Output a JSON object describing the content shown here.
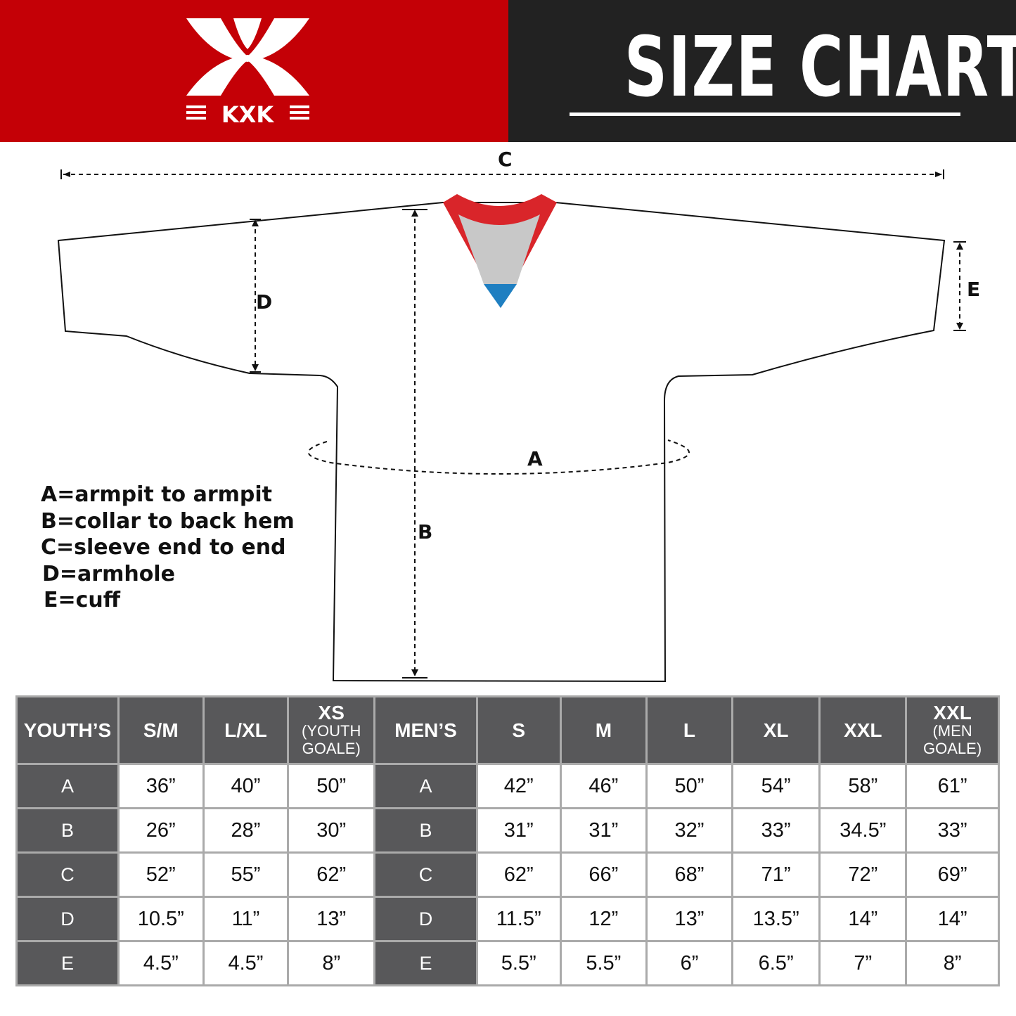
{
  "brand": {
    "logo_text": "KXK",
    "colors": {
      "red": "#c40006",
      "dark": "#222222",
      "table_header": "#58585a"
    }
  },
  "header": {
    "title": "SIZE CHART"
  },
  "diagram": {
    "labels": {
      "A": "A",
      "B": "B",
      "C": "C",
      "D": "D",
      "E": "E"
    }
  },
  "legend": [
    "A=armpit to armpit",
    "B=collar to back hem",
    "C=sleeve end to end",
    "D=armhole",
    "E=cuff"
  ],
  "table": {
    "youth_header": "YOUTH’S",
    "youth_sizes": [
      {
        "main": "S/M"
      },
      {
        "main": "L/XL"
      },
      {
        "main": "XS",
        "sub1": "(YOUTH",
        "sub2": "GOALE)"
      }
    ],
    "men_header": "MEN’S",
    "men_sizes": [
      {
        "main": "S"
      },
      {
        "main": "M"
      },
      {
        "main": "L"
      },
      {
        "main": "XL"
      },
      {
        "main": "XXL"
      },
      {
        "main": "XXL",
        "sub1": "(MEN",
        "sub2": "GOALE)"
      }
    ],
    "rows": [
      {
        "label": "A",
        "youth": [
          "36”",
          "40”",
          "50”"
        ],
        "men": [
          "42”",
          "46”",
          "50”",
          "54”",
          "58”",
          "61”"
        ]
      },
      {
        "label": "B",
        "youth": [
          "26”",
          "28”",
          "30”"
        ],
        "men": [
          "31”",
          "31”",
          "32”",
          "33”",
          "34.5”",
          "33”"
        ]
      },
      {
        "label": "C",
        "youth": [
          "52”",
          "55”",
          "62”"
        ],
        "men": [
          "62”",
          "66”",
          "68”",
          "71”",
          "72”",
          "69”"
        ]
      },
      {
        "label": "D",
        "youth": [
          "10.5”",
          "11”",
          "13”"
        ],
        "men": [
          "11.5”",
          "12”",
          "13”",
          "13.5”",
          "14”",
          "14”"
        ]
      },
      {
        "label": "E",
        "youth": [
          "4.5”",
          "4.5”",
          "8”"
        ],
        "men": [
          "5.5”",
          "5.5”",
          "6”",
          "6.5”",
          "7”",
          "8”"
        ]
      }
    ]
  }
}
